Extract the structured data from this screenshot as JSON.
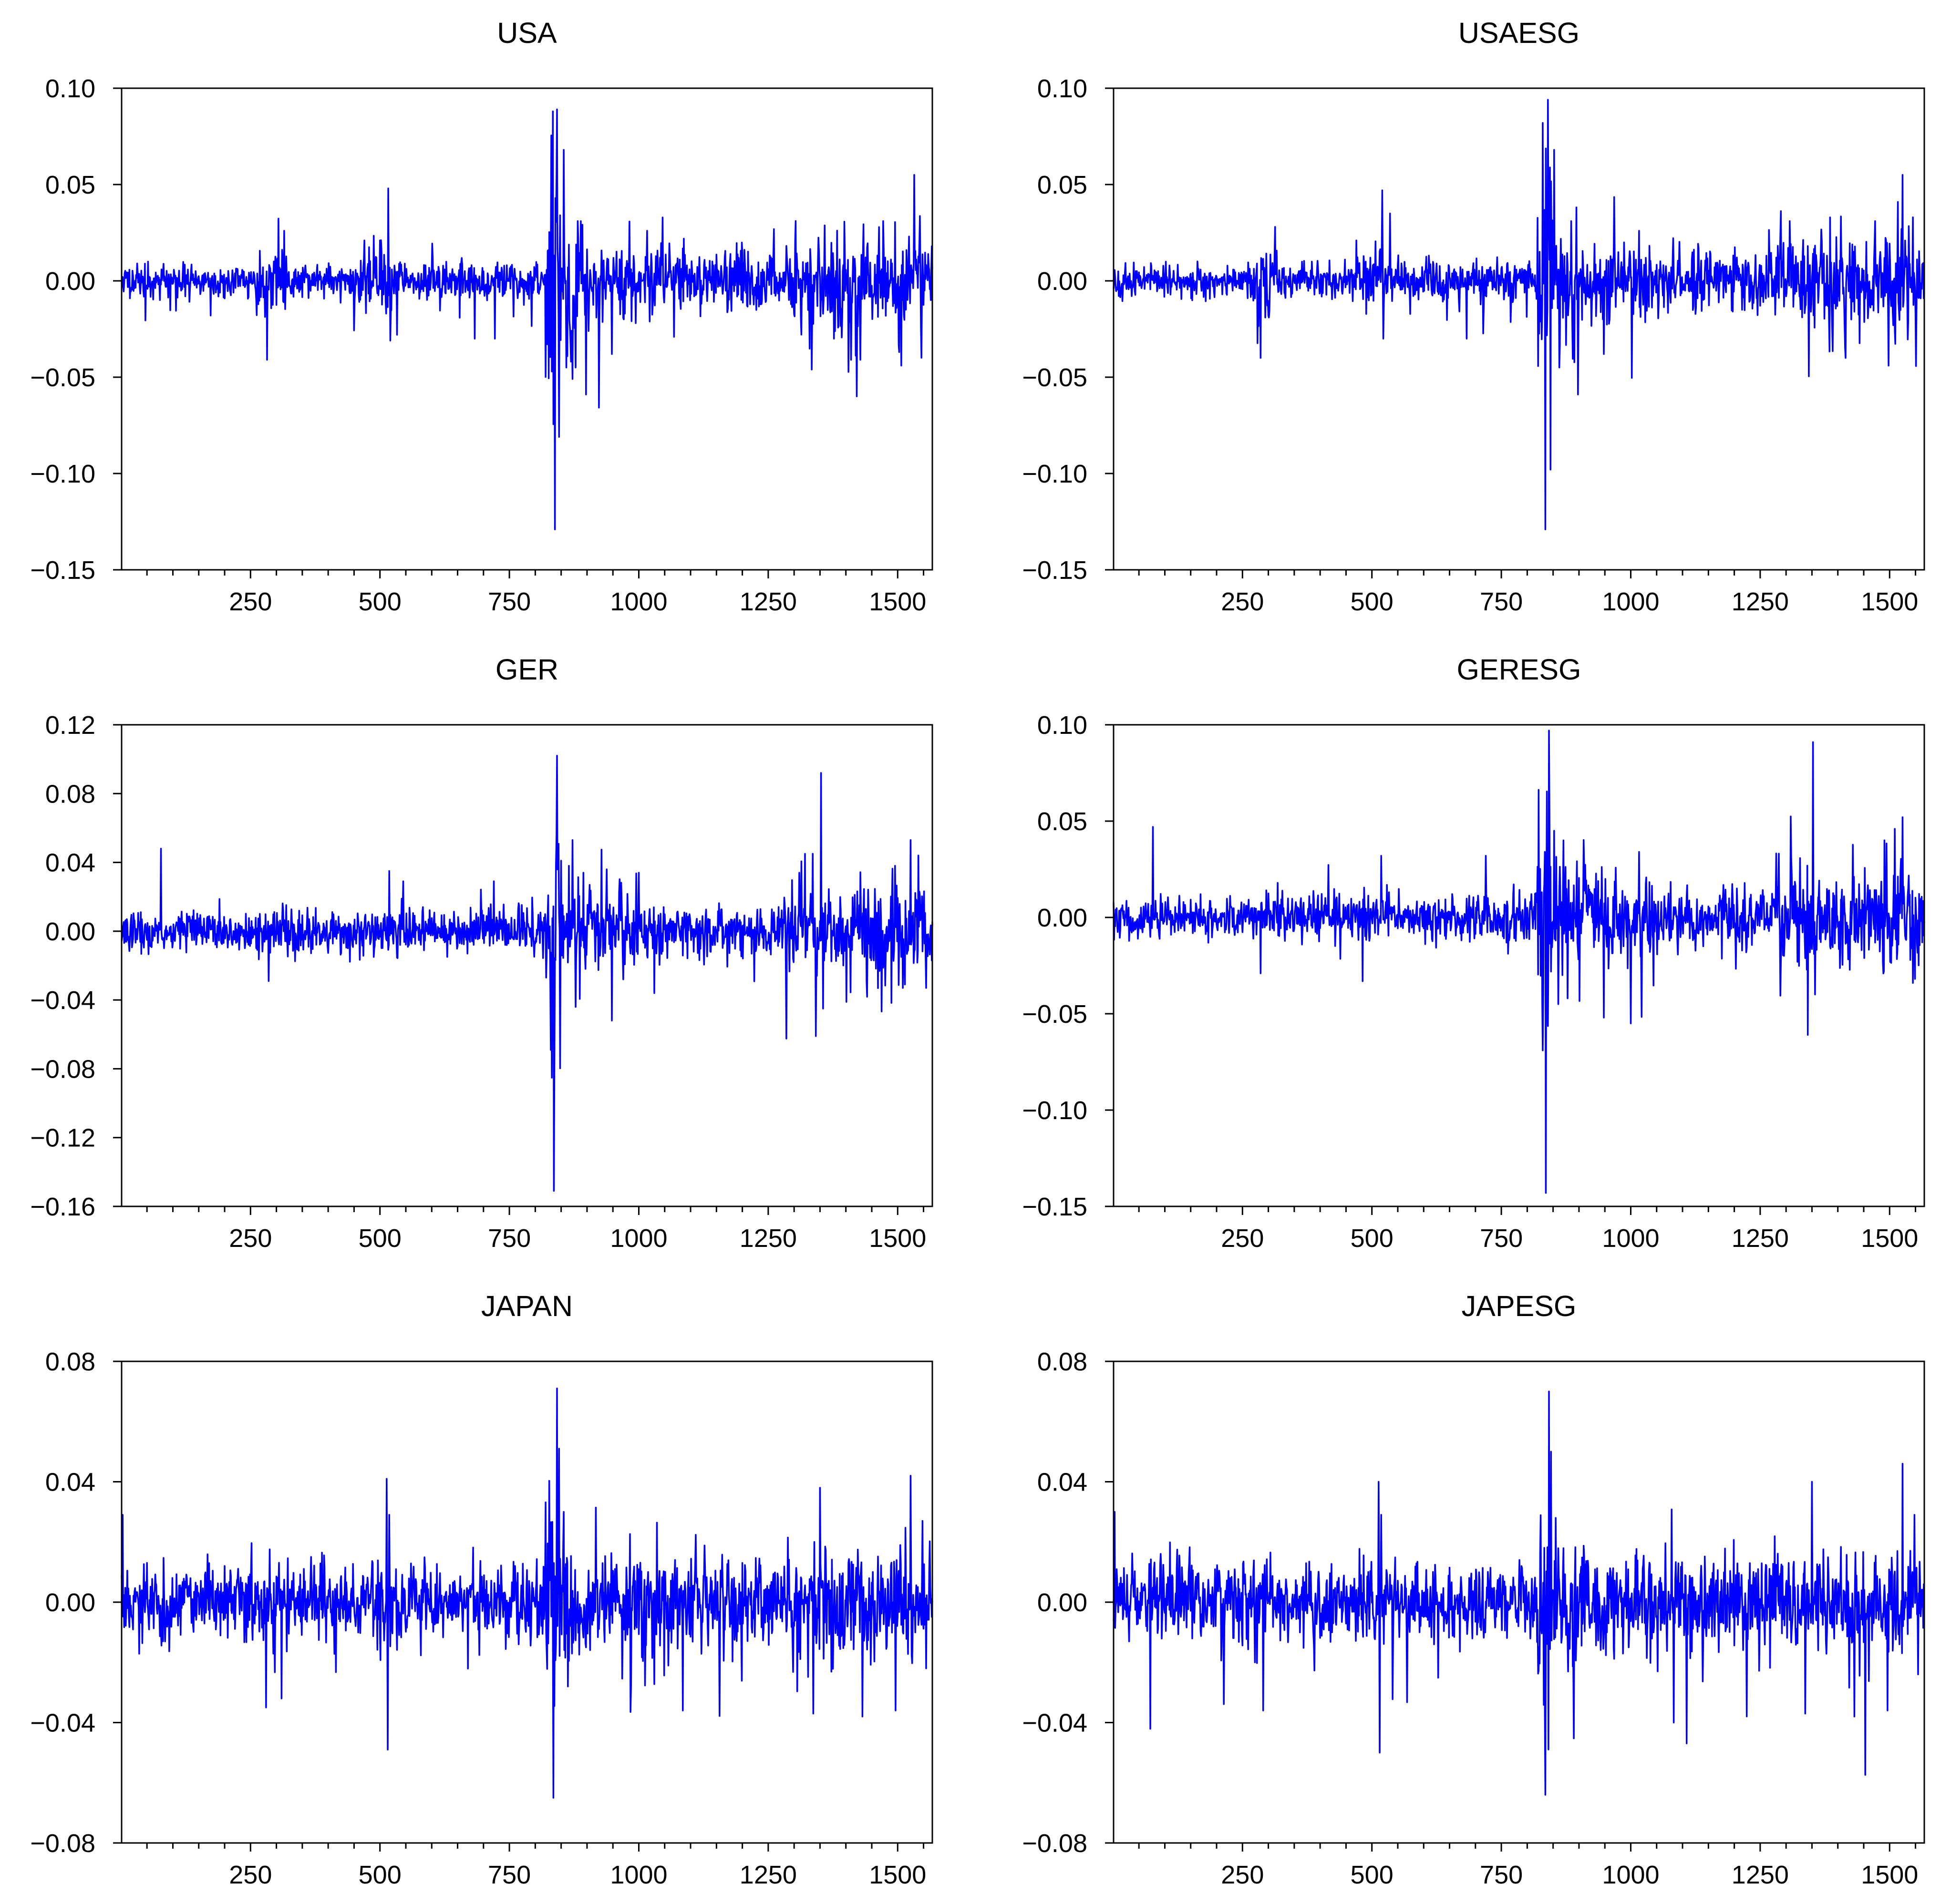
{
  "page": {
    "background": "#ffffff"
  },
  "chart_data": [
    {
      "type": "line",
      "title": "USA",
      "xlabel": "",
      "ylabel": "",
      "xlim": [
        1,
        1567
      ],
      "ylim": [
        -0.15,
        0.1
      ],
      "yticks": [
        "0.10",
        "0.05",
        "0.00",
        "-0.05",
        "-0.10",
        "-0.15"
      ],
      "xticks": [
        "250",
        "500",
        "750",
        "1000",
        "1250",
        "1500"
      ],
      "grid": false,
      "line_color": "#0000ff",
      "series": [
        {
          "seed": 11,
          "base_vol": 0.0045,
          "vol_segments": [
            [
              1,
              260,
              0.0045
            ],
            [
              260,
              320,
              0.009
            ],
            [
              320,
              460,
              0.005
            ],
            [
              460,
              540,
              0.009
            ],
            [
              540,
              820,
              0.0055
            ],
            [
              820,
              850,
              0.035
            ],
            [
              850,
              900,
              0.018
            ],
            [
              900,
              1050,
              0.011
            ],
            [
              1050,
              1290,
              0.009
            ],
            [
              1290,
              1567,
              0.014
            ]
          ],
          "spikes": [
            [
              282,
              -0.041
            ],
            [
              315,
              0.026
            ],
            [
              470,
              0.021
            ],
            [
              500,
              0.021
            ],
            [
              516,
              0.048
            ],
            [
              520,
              -0.031
            ],
            [
              533,
              -0.028
            ],
            [
              683,
              -0.03
            ],
            [
              722,
              -0.03
            ],
            [
              834,
              0.088
            ],
            [
              838,
              -0.129
            ],
            [
              842,
              0.089
            ],
            [
              846,
              -0.081
            ],
            [
              855,
              0.068
            ],
            [
              860,
              -0.045
            ],
            [
              878,
              -0.045
            ],
            [
              882,
              0.031
            ],
            [
              888,
              0.031
            ],
            [
              898,
              -0.059
            ],
            [
              948,
              -0.038
            ],
            [
              1016,
              0.026
            ],
            [
              1410,
              -0.041
            ],
            [
              1428,
              -0.041
            ],
            [
              1472,
              0.031
            ],
            [
              1507,
              -0.044
            ],
            [
              1532,
              0.055
            ],
            [
              1545,
              -0.025
            ]
          ]
        }
      ]
    },
    {
      "type": "line",
      "title": "USAESG",
      "xlabel": "",
      "ylabel": "",
      "xlim": [
        1,
        1567
      ],
      "ylim": [
        -0.15,
        0.1
      ],
      "yticks": [
        "0.10",
        "0.05",
        "0.00",
        "-0.05",
        "-0.10",
        "-0.15"
      ],
      "xticks": [
        "250",
        "500",
        "750",
        "1000",
        "1250",
        "1500"
      ],
      "grid": false,
      "line_color": "#0000ff",
      "series": [
        {
          "seed": 23,
          "base_vol": 0.0045,
          "vol_segments": [
            [
              1,
              260,
              0.0045
            ],
            [
              260,
              320,
              0.009
            ],
            [
              320,
              460,
              0.005
            ],
            [
              460,
              540,
              0.009
            ],
            [
              540,
              820,
              0.0055
            ],
            [
              820,
              850,
              0.035
            ],
            [
              850,
              900,
              0.018
            ],
            [
              900,
              1050,
              0.011
            ],
            [
              1050,
              1290,
              0.009
            ],
            [
              1290,
              1567,
              0.014
            ]
          ],
          "spikes": [
            [
              285,
              -0.04
            ],
            [
              313,
              0.028
            ],
            [
              470,
              0.021
            ],
            [
              520,
              0.047
            ],
            [
              522,
              -0.03
            ],
            [
              535,
              0.035
            ],
            [
              683,
              -0.03
            ],
            [
              830,
              0.082
            ],
            [
              835,
              -0.129
            ],
            [
              840,
              0.094
            ],
            [
              845,
              -0.098
            ],
            [
              852,
              0.068
            ],
            [
              862,
              -0.045
            ],
            [
              885,
              0.031
            ],
            [
              898,
              -0.059
            ],
            [
              948,
              -0.038
            ],
            [
              1016,
              0.026
            ],
            [
              1415,
              -0.04
            ],
            [
              1472,
              0.031
            ],
            [
              1498,
              -0.044
            ],
            [
              1525,
              0.055
            ],
            [
              1545,
              0.033
            ]
          ]
        }
      ]
    },
    {
      "type": "line",
      "title": "GER",
      "xlabel": "",
      "ylabel": "",
      "xlim": [
        1,
        1567
      ],
      "ylim": [
        -0.16,
        0.12
      ],
      "yticks": [
        "0.12",
        "0.08",
        "0.04",
        "0.00",
        "-0.04",
        "-0.08",
        "-0.12",
        "-0.16"
      ],
      "xticks": [
        "250",
        "500",
        "750",
        "1000",
        "1250",
        "1500"
      ],
      "grid": false,
      "line_color": "#0000ff",
      "series": [
        {
          "seed": 37,
          "base_vol": 0.006,
          "vol_segments": [
            [
              1,
              260,
              0.006
            ],
            [
              260,
              330,
              0.008
            ],
            [
              330,
              820,
              0.007
            ],
            [
              820,
              850,
              0.035
            ],
            [
              850,
              920,
              0.016
            ],
            [
              920,
              1050,
              0.012
            ],
            [
              1050,
              1280,
              0.008
            ],
            [
              1280,
              1400,
              0.014
            ],
            [
              1400,
              1567,
              0.016
            ]
          ],
          "spikes": [
            [
              77,
              0.048
            ],
            [
              285,
              -0.029
            ],
            [
              518,
              0.035
            ],
            [
              545,
              0.029
            ],
            [
              720,
              0.029
            ],
            [
              830,
              -0.069
            ],
            [
              836,
              -0.151
            ],
            [
              842,
              0.102
            ],
            [
              850,
              0.041
            ],
            [
              865,
              0.038
            ],
            [
              872,
              0.053
            ],
            [
              878,
              -0.044
            ],
            [
              948,
              -0.052
            ],
            [
              1000,
              0.034
            ],
            [
              1030,
              -0.036
            ],
            [
              1310,
              0.034
            ],
            [
              1336,
              0.045
            ],
            [
              1342,
              -0.061
            ],
            [
              1352,
              0.092
            ],
            [
              1356,
              -0.045
            ],
            [
              1495,
              0.038
            ],
            [
              1510,
              -0.033
            ],
            [
              1525,
              0.053
            ],
            [
              1540,
              0.044
            ],
            [
              1555,
              -0.033
            ]
          ]
        }
      ]
    },
    {
      "type": "line",
      "title": "GERESG",
      "xlabel": "",
      "ylabel": "",
      "xlim": [
        1,
        1567
      ],
      "ylim": [
        -0.15,
        0.1
      ],
      "yticks": [
        "0.10",
        "0.05",
        "0.00",
        "-0.05",
        "-0.10",
        "-0.15"
      ],
      "xticks": [
        "250",
        "500",
        "750",
        "1000",
        "1250",
        "1500"
      ],
      "grid": false,
      "line_color": "#0000ff",
      "series": [
        {
          "seed": 41,
          "base_vol": 0.0055,
          "vol_segments": [
            [
              1,
              260,
              0.0055
            ],
            [
              260,
              820,
              0.007
            ],
            [
              820,
              850,
              0.035
            ],
            [
              850,
              920,
              0.016
            ],
            [
              920,
              1050,
              0.012
            ],
            [
              1050,
              1280,
              0.008
            ],
            [
              1280,
              1400,
              0.014
            ],
            [
              1400,
              1567,
              0.016
            ]
          ],
          "spikes": [
            [
              77,
              0.047
            ],
            [
              285,
              -0.029
            ],
            [
              518,
              0.032
            ],
            [
              720,
              0.032
            ],
            [
              830,
              -0.069
            ],
            [
              836,
              -0.143
            ],
            [
              842,
              0.097
            ],
            [
              852,
              0.045
            ],
            [
              870,
              0.04
            ],
            [
              878,
              -0.042
            ],
            [
              948,
              -0.052
            ],
            [
              1000,
              -0.055
            ],
            [
              1016,
              0.034
            ],
            [
              1310,
              0.031
            ],
            [
              1342,
              -0.061
            ],
            [
              1352,
              0.091
            ],
            [
              1356,
              -0.04
            ],
            [
              1490,
              0.04
            ],
            [
              1510,
              0.046
            ],
            [
              1525,
              0.052
            ],
            [
              1545,
              -0.034
            ]
          ]
        }
      ]
    },
    {
      "type": "line",
      "title": "JAPAN",
      "xlabel": "",
      "ylabel": "",
      "xlim": [
        1,
        1567
      ],
      "ylim": [
        -0.08,
        0.08
      ],
      "yticks": [
        "0.08",
        "0.04",
        "0.00",
        "-0.04",
        "-0.08"
      ],
      "xticks": [
        "250",
        "500",
        "750",
        "1000",
        "1250",
        "1500"
      ],
      "grid": false,
      "line_color": "#0000ff",
      "series": [
        {
          "seed": 53,
          "base_vol": 0.0075,
          "vol_segments": [
            [
              1,
              820,
              0.0075
            ],
            [
              820,
              850,
              0.02
            ],
            [
              850,
              920,
              0.012
            ],
            [
              920,
              1567,
              0.009
            ]
          ],
          "spikes": [
            [
              3,
              0.029
            ],
            [
              280,
              -0.035
            ],
            [
              310,
              -0.032
            ],
            [
              513,
              0.041
            ],
            [
              515,
              -0.049
            ],
            [
              518,
              0.029
            ],
            [
              835,
              -0.065
            ],
            [
              842,
              0.071
            ],
            [
              846,
              0.051
            ],
            [
              855,
              0.03
            ],
            [
              863,
              -0.028
            ],
            [
              1085,
              -0.036
            ],
            [
              1337,
              -0.037
            ],
            [
              1350,
              0.038
            ],
            [
              1432,
              -0.038
            ],
            [
              1496,
              -0.036
            ],
            [
              1525,
              0.042
            ],
            [
              1548,
              0.027
            ],
            [
              1555,
              -0.022
            ]
          ]
        }
      ]
    },
    {
      "type": "line",
      "title": "JAPESG",
      "xlabel": "",
      "ylabel": "",
      "xlim": [
        1,
        1567
      ],
      "ylim": [
        -0.08,
        0.08
      ],
      "yticks": [
        "0.08",
        "0.04",
        "0.00",
        "-0.04",
        "-0.08"
      ],
      "xticks": [
        "250",
        "500",
        "750",
        "1000",
        "1250",
        "1500"
      ],
      "grid": false,
      "line_color": "#0000ff",
      "series": [
        {
          "seed": 67,
          "base_vol": 0.0072,
          "vol_segments": [
            [
              1,
              820,
              0.0072
            ],
            [
              820,
              850,
              0.02
            ],
            [
              850,
              920,
              0.012
            ],
            [
              920,
              1567,
              0.009
            ]
          ],
          "spikes": [
            [
              3,
              0.03
            ],
            [
              290,
              -0.036
            ],
            [
              513,
              0.04
            ],
            [
              515,
              -0.05
            ],
            [
              518,
              0.029
            ],
            [
              835,
              -0.064
            ],
            [
              842,
              0.07
            ],
            [
              846,
              0.05
            ],
            [
              855,
              0.028
            ],
            [
              1083,
              -0.04
            ],
            [
              1337,
              -0.037
            ],
            [
              1350,
              0.04
            ],
            [
              1432,
              -0.038
            ],
            [
              1496,
              -0.036
            ],
            [
              1525,
              0.046
            ],
            [
              1548,
              0.029
            ],
            [
              1555,
              -0.024
            ]
          ]
        }
      ]
    }
  ]
}
